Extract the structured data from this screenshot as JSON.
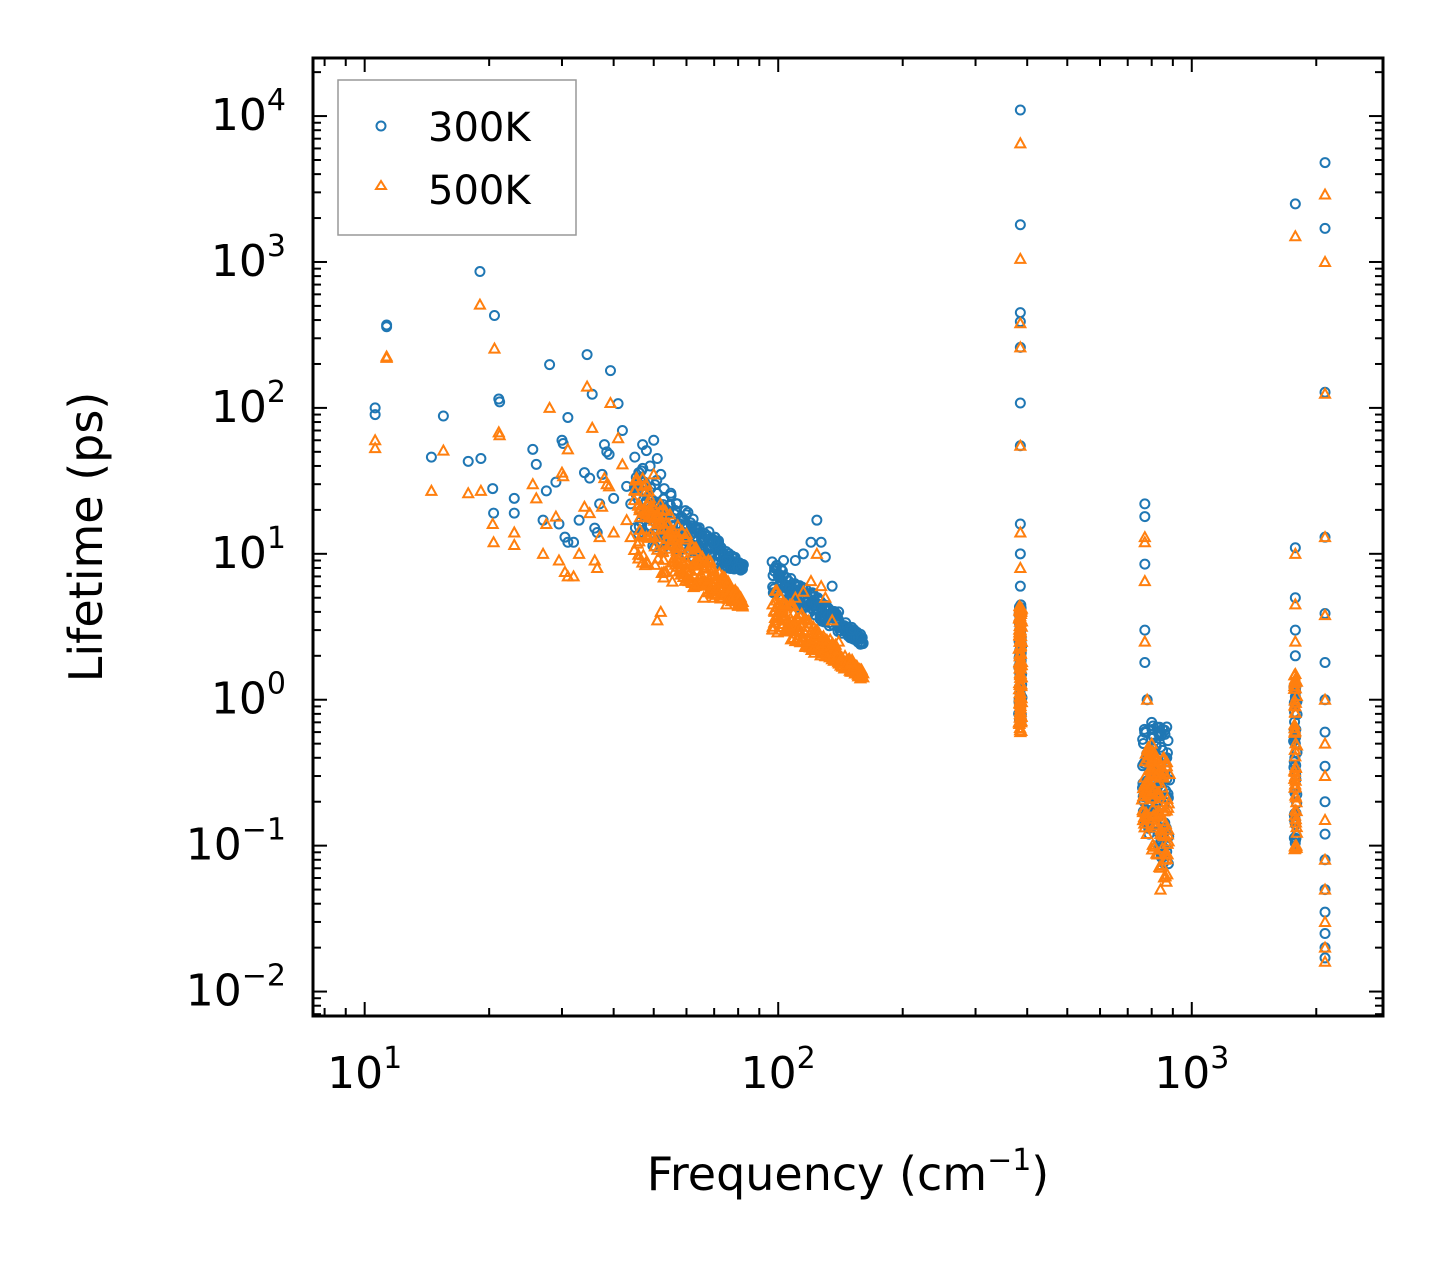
{
  "chart_data": {
    "type": "scatter",
    "xscale": "log",
    "yscale": "log",
    "xlabel": "Frequency (cm",
    "xlabel_sup": "−1",
    "xlabel_end": ")",
    "ylabel": "Lifetime (ps)",
    "xlim": [
      7.5,
      2900
    ],
    "ylim": [
      0.0068,
      25000
    ],
    "x_ticks": [
      {
        "value": 10,
        "base": "10",
        "exp": "1"
      },
      {
        "value": 100,
        "base": "10",
        "exp": "2"
      },
      {
        "value": 1000,
        "base": "10",
        "exp": "3"
      }
    ],
    "y_ticks": [
      {
        "value": 0.01,
        "base": "10",
        "exp": "−2"
      },
      {
        "value": 0.1,
        "base": "10",
        "exp": "−1"
      },
      {
        "value": 1,
        "base": "10",
        "exp": "0"
      },
      {
        "value": 10,
        "base": "10",
        "exp": "1"
      },
      {
        "value": 100,
        "base": "10",
        "exp": "2"
      },
      {
        "value": 1000,
        "base": "10",
        "exp": "3"
      },
      {
        "value": 10000,
        "base": "10",
        "exp": "4"
      }
    ],
    "legend_position": "top-left",
    "series": [
      {
        "name": "300K",
        "marker": "circle",
        "color": "#1f77b4",
        "points": [
          [
            10.6,
            100
          ],
          [
            10.6,
            90
          ],
          [
            11.3,
            370
          ],
          [
            11.3,
            360
          ],
          [
            14.5,
            46
          ],
          [
            15.5,
            88
          ],
          [
            17.8,
            43
          ],
          [
            19,
            860
          ],
          [
            19.1,
            45
          ],
          [
            20.4,
            28
          ],
          [
            20.5,
            19
          ],
          [
            20.6,
            430
          ],
          [
            21.1,
            115
          ],
          [
            21.2,
            110
          ],
          [
            23,
            24
          ],
          [
            23,
            19
          ],
          [
            25.5,
            52
          ],
          [
            26,
            41
          ],
          [
            27,
            17
          ],
          [
            27.5,
            27
          ],
          [
            28,
            198
          ],
          [
            29,
            31
          ],
          [
            29.5,
            16
          ],
          [
            30,
            60
          ],
          [
            30.2,
            57
          ],
          [
            30.5,
            13
          ],
          [
            31,
            86
          ],
          [
            31,
            12
          ],
          [
            32,
            12
          ],
          [
            33,
            17
          ],
          [
            34,
            36
          ],
          [
            34.5,
            232
          ],
          [
            35,
            33
          ],
          [
            35.5,
            124
          ],
          [
            36,
            15
          ],
          [
            36.5,
            14
          ],
          [
            37,
            22
          ],
          [
            37.5,
            35
          ],
          [
            38,
            56
          ],
          [
            38.5,
            50
          ],
          [
            39,
            48
          ],
          [
            39.3,
            180
          ],
          [
            40,
            24
          ],
          [
            41,
            107
          ],
          [
            42,
            70
          ],
          [
            43,
            29
          ],
          [
            44,
            22
          ],
          [
            45,
            46
          ],
          [
            46,
            36
          ],
          [
            47,
            56
          ],
          [
            48,
            51
          ],
          [
            49,
            40
          ],
          [
            50,
            60
          ],
          [
            51,
            45
          ],
          [
            52,
            35
          ],
          [
            53,
            28
          ],
          [
            55,
            26
          ],
          [
            57,
            22
          ],
          [
            60,
            16
          ],
          [
            63,
            14
          ],
          [
            66,
            13
          ],
          [
            70,
            12
          ],
          [
            75,
            9
          ],
          [
            80,
            8
          ],
          [
            98,
            8
          ],
          [
            100,
            7
          ],
          [
            103,
            9
          ],
          [
            106,
            6.5
          ],
          [
            110,
            9
          ],
          [
            115,
            10
          ],
          [
            120,
            12
          ],
          [
            124,
            17
          ],
          [
            127,
            12
          ],
          [
            130,
            9.5
          ],
          [
            135,
            6
          ],
          [
            140,
            4
          ],
          [
            150,
            3
          ],
          [
            158,
            2.4
          ],
          [
            385,
            11000
          ],
          [
            385,
            1800
          ],
          [
            385,
            450
          ],
          [
            385,
            390
          ],
          [
            385,
            260
          ],
          [
            385,
            108
          ],
          [
            385,
            55
          ],
          [
            385,
            16
          ],
          [
            385,
            10
          ],
          [
            385,
            6
          ],
          [
            385,
            3.5
          ],
          [
            385,
            2
          ],
          [
            385,
            1.2
          ],
          [
            385,
            0.8
          ],
          [
            770,
            22
          ],
          [
            770,
            18
          ],
          [
            770,
            8.5
          ],
          [
            770,
            3
          ],
          [
            770,
            1.8
          ],
          [
            780,
            1
          ],
          [
            800,
            0.7
          ],
          [
            820,
            0.5
          ],
          [
            850,
            0.45
          ],
          [
            870,
            0.65
          ],
          [
            870,
            0.4
          ],
          [
            860,
            0.3
          ],
          [
            1780,
            2500
          ],
          [
            1780,
            11
          ],
          [
            1780,
            5
          ],
          [
            1780,
            3
          ],
          [
            1780,
            2
          ],
          [
            1780,
            1.2
          ],
          [
            1780,
            0.5
          ],
          [
            2100,
            4800
          ],
          [
            2100,
            1700
          ],
          [
            2100,
            128
          ],
          [
            2100,
            13
          ],
          [
            2100,
            3.9
          ],
          [
            2100,
            1.8
          ],
          [
            2100,
            1
          ],
          [
            2100,
            0.6
          ],
          [
            2100,
            0.35
          ],
          [
            2100,
            0.2
          ],
          [
            2100,
            0.12
          ],
          [
            2100,
            0.08
          ],
          [
            2100,
            0.05
          ],
          [
            2100,
            0.035
          ],
          [
            2100,
            0.025
          ],
          [
            2100,
            0.02
          ],
          [
            2100,
            0.017
          ]
        ],
        "bands": [
          {
            "x_start": 45,
            "x_end": 82,
            "y_start_top": 45,
            "y_start_bottom": 12,
            "y_end_top": 8.5,
            "y_end_bottom": 7.5,
            "count": 55
          },
          {
            "x_start": 97,
            "x_end": 160,
            "y_start_top": 9,
            "y_start_bottom": 5,
            "y_end_top": 2.8,
            "y_end_bottom": 2.4,
            "count": 45
          },
          {
            "x_start": 383,
            "x_end": 387,
            "y_start_top": 4.5,
            "y_start_bottom": 0.7,
            "y_end_top": 4.5,
            "y_end_bottom": 0.7,
            "count": 25
          },
          {
            "x_start": 760,
            "x_end": 880,
            "y_start_top": 0.7,
            "y_start_bottom": 0.15,
            "y_end_top": 0.7,
            "y_end_bottom": 0.06,
            "count": 25
          },
          {
            "x_start": 1770,
            "x_end": 1790,
            "y_start_top": 1.5,
            "y_start_bottom": 0.1,
            "y_end_top": 1.5,
            "y_end_bottom": 0.1,
            "count": 12
          }
        ]
      },
      {
        "name": "500K",
        "marker": "triangle",
        "color": "#ff7f0e",
        "points": [
          [
            10.6,
            60
          ],
          [
            10.6,
            53
          ],
          [
            11.3,
            225
          ],
          [
            11.3,
            220
          ],
          [
            14.5,
            27
          ],
          [
            15.5,
            51
          ],
          [
            17.8,
            26
          ],
          [
            19,
            510
          ],
          [
            19.1,
            27
          ],
          [
            20.4,
            16
          ],
          [
            20.5,
            12
          ],
          [
            20.6,
            255
          ],
          [
            21.1,
            68
          ],
          [
            21.2,
            65
          ],
          [
            23,
            14
          ],
          [
            23,
            11.5
          ],
          [
            25.5,
            30
          ],
          [
            26,
            24
          ],
          [
            27,
            10
          ],
          [
            27.5,
            16
          ],
          [
            28,
            100
          ],
          [
            29,
            18
          ],
          [
            29.5,
            9
          ],
          [
            30,
            36
          ],
          [
            30.2,
            34
          ],
          [
            30.5,
            7.5
          ],
          [
            31,
            52
          ],
          [
            31,
            7
          ],
          [
            32,
            7
          ],
          [
            33,
            10
          ],
          [
            34,
            21
          ],
          [
            34.5,
            140
          ],
          [
            35,
            19
          ],
          [
            35.5,
            73
          ],
          [
            36,
            9
          ],
          [
            36.5,
            8
          ],
          [
            37,
            13
          ],
          [
            37.5,
            21
          ],
          [
            38,
            33
          ],
          [
            38.5,
            30
          ],
          [
            39,
            29
          ],
          [
            39.3,
            108
          ],
          [
            40,
            14
          ],
          [
            41,
            62
          ],
          [
            42,
            41
          ],
          [
            43,
            17
          ],
          [
            44,
            13
          ],
          [
            45,
            27
          ],
          [
            46,
            22
          ],
          [
            47,
            33
          ],
          [
            48,
            30
          ],
          [
            49,
            24
          ],
          [
            50,
            35
          ],
          [
            51,
            3.5
          ],
          [
            52,
            4
          ],
          [
            53,
            15
          ],
          [
            55,
            14
          ],
          [
            57,
            11
          ],
          [
            60,
            9
          ],
          [
            63,
            6
          ],
          [
            66,
            5
          ],
          [
            70,
            5
          ],
          [
            75,
            4.5
          ],
          [
            80,
            4.4
          ],
          [
            98,
            4
          ],
          [
            100,
            3.5
          ],
          [
            103,
            4.5
          ],
          [
            106,
            3.2
          ],
          [
            110,
            5
          ],
          [
            115,
            5.5
          ],
          [
            120,
            6.5
          ],
          [
            124,
            10
          ],
          [
            127,
            6
          ],
          [
            130,
            5
          ],
          [
            135,
            3.5
          ],
          [
            140,
            2.5
          ],
          [
            150,
            1.8
          ],
          [
            158,
            1.4
          ],
          [
            385,
            6500
          ],
          [
            385,
            1050
          ],
          [
            385,
            380
          ],
          [
            385,
            260
          ],
          [
            385,
            55
          ],
          [
            385,
            14
          ],
          [
            385,
            8
          ],
          [
            385,
            4
          ],
          [
            385,
            2.5
          ],
          [
            385,
            1.5
          ],
          [
            385,
            1
          ],
          [
            385,
            0.8
          ],
          [
            385,
            0.6
          ],
          [
            770,
            13
          ],
          [
            770,
            12
          ],
          [
            770,
            6.5
          ],
          [
            770,
            2.5
          ],
          [
            780,
            1
          ],
          [
            800,
            0.5
          ],
          [
            820,
            0.3
          ],
          [
            850,
            0.25
          ],
          [
            870,
            0.35
          ],
          [
            860,
            0.08
          ],
          [
            840,
            0.05
          ],
          [
            1780,
            1500
          ],
          [
            1780,
            10
          ],
          [
            1780,
            4.5
          ],
          [
            1780,
            2.5
          ],
          [
            1780,
            1.5
          ],
          [
            1780,
            0.9
          ],
          [
            1780,
            0.3
          ],
          [
            1780,
            0.1
          ],
          [
            2100,
            2900
          ],
          [
            2100,
            1000
          ],
          [
            2100,
            125
          ],
          [
            2100,
            13
          ],
          [
            2100,
            3.8
          ],
          [
            2100,
            1
          ],
          [
            2100,
            0.5
          ],
          [
            2100,
            0.3
          ],
          [
            2100,
            0.15
          ],
          [
            2100,
            0.08
          ],
          [
            2100,
            0.05
          ],
          [
            2100,
            0.03
          ],
          [
            2100,
            0.02
          ],
          [
            2100,
            0.016
          ]
        ],
        "bands": [
          {
            "x_start": 45,
            "x_end": 82,
            "y_start_top": 35,
            "y_start_bottom": 8,
            "y_end_top": 5,
            "y_end_bottom": 4.3,
            "count": 60
          },
          {
            "x_start": 97,
            "x_end": 160,
            "y_start_top": 6,
            "y_start_bottom": 3,
            "y_end_top": 1.6,
            "y_end_bottom": 1.4,
            "count": 50
          },
          {
            "x_start": 383,
            "x_end": 387,
            "y_start_top": 4.5,
            "y_start_bottom": 0.6,
            "y_end_top": 4.5,
            "y_end_bottom": 0.6,
            "count": 25
          },
          {
            "x_start": 760,
            "x_end": 880,
            "y_start_top": 0.5,
            "y_start_bottom": 0.13,
            "y_end_top": 0.4,
            "y_end_bottom": 0.045,
            "count": 30
          },
          {
            "x_start": 1770,
            "x_end": 1790,
            "y_start_top": 1.5,
            "y_start_bottom": 0.09,
            "y_end_top": 1.5,
            "y_end_bottom": 0.09,
            "count": 12
          }
        ]
      }
    ]
  }
}
